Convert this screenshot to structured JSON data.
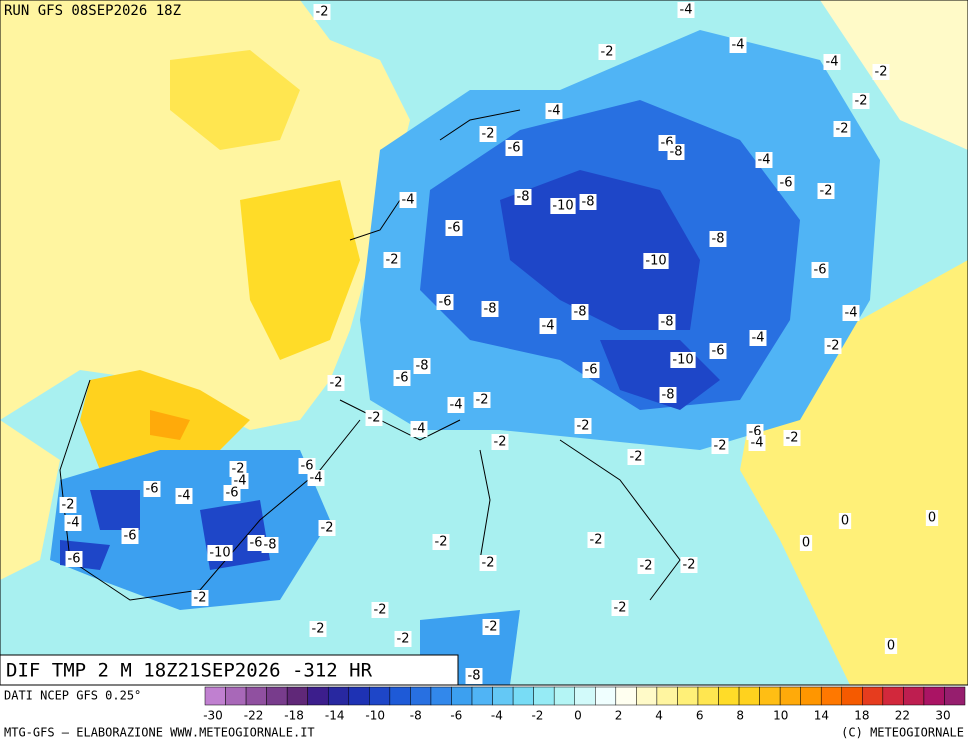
{
  "header": {
    "run": "RUN GFS 08SEP2026 18Z"
  },
  "map": {
    "field": "DIF TMP 2 M 18Z21SEP2026 -312 HR",
    "labels": [
      "-2",
      "-4",
      "-4",
      "-2",
      "-4",
      "-2",
      "-2",
      "-4",
      "-2",
      "-6",
      "-6",
      "-8",
      "-2",
      "-4",
      "-6",
      "-2",
      "-4",
      "-8",
      "-10",
      "-8",
      "-6",
      "-8",
      "-2",
      "-10",
      "-6",
      "-6",
      "-8",
      "-4",
      "-8",
      "-8",
      "-4",
      "-4",
      "-2",
      "-6",
      "-10",
      "-8",
      "-6",
      "-6",
      "-2",
      "-8",
      "-4",
      "-2",
      "-2",
      "-4",
      "-2",
      "-6",
      "-4",
      "-2",
      "-2",
      "-2",
      "-2",
      "-2",
      "-6",
      "-4",
      "-4",
      "-6",
      "-4",
      "-6",
      "-2",
      "-4",
      "0",
      "0",
      "-2",
      "-6",
      "-10",
      "-6",
      "-8",
      "-2",
      "-2",
      "0",
      "-6",
      "-2",
      "-2",
      "-2",
      "-2",
      "-2",
      "-2",
      "-2",
      "-2",
      "-2",
      "0",
      "-8"
    ]
  },
  "legend": {
    "source": "DATI NCEP GFS 0.25°",
    "colors": [
      "#c080d0",
      "#a868b8",
      "#9050a0",
      "#783c8c",
      "#602878",
      "#3c1e8c",
      "#2828a0",
      "#1e32b4",
      "#1e46c8",
      "#1e5ad7",
      "#2870e1",
      "#3288eb",
      "#3ca0f0",
      "#50b4f5",
      "#64c8f5",
      "#78dcf5",
      "#96ebf5",
      "#b4f5f5",
      "#d2fafa",
      "#f0ffff",
      "#fffff0",
      "#fffac8",
      "#fff5a0",
      "#fff078",
      "#ffe650",
      "#ffdc28",
      "#ffd21e",
      "#ffbe14",
      "#ffaa0a",
      "#ff9600",
      "#ff7800",
      "#f55a00",
      "#e63c1e",
      "#d2283c",
      "#be1e50",
      "#aa1464",
      "#961e6e"
    ],
    "labels": [
      "-30",
      "-22",
      "-18",
      "-14",
      "-10",
      "-8",
      "-6",
      "-4",
      "-2",
      "0",
      "2",
      "4",
      "6",
      "8",
      "10",
      "14",
      "18",
      "22",
      "30"
    ]
  },
  "footer": {
    "credit": "MTG-GFS – ELABORAZIONE WWW.METEOGIORNALE.IT",
    "copyright": "(C) METEOGIORNALE"
  }
}
